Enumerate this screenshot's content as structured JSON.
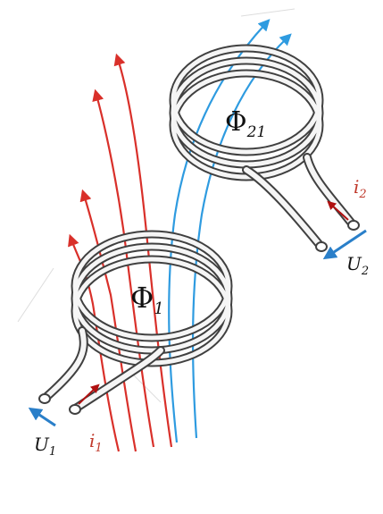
{
  "labels": {
    "flux_primary": "Φ",
    "flux_primary_sub": "1",
    "flux_mutual": "Φ",
    "flux_mutual_sub": "21",
    "voltage_primary": "U",
    "voltage_primary_sub": "1",
    "voltage_secondary": "U",
    "voltage_secondary_sub": "2",
    "current_primary": "i",
    "current_primary_sub": "1",
    "current_secondary": "i",
    "current_secondary_sub": "2"
  },
  "colors": {
    "field_primary": "#d9302a",
    "field_mutual": "#2e9be0",
    "current_arrow": "#b01010",
    "voltage_arrow": "#2a7fc9",
    "coil_outline": "#404040",
    "current_text": "#c0392b",
    "text": "#111111"
  }
}
